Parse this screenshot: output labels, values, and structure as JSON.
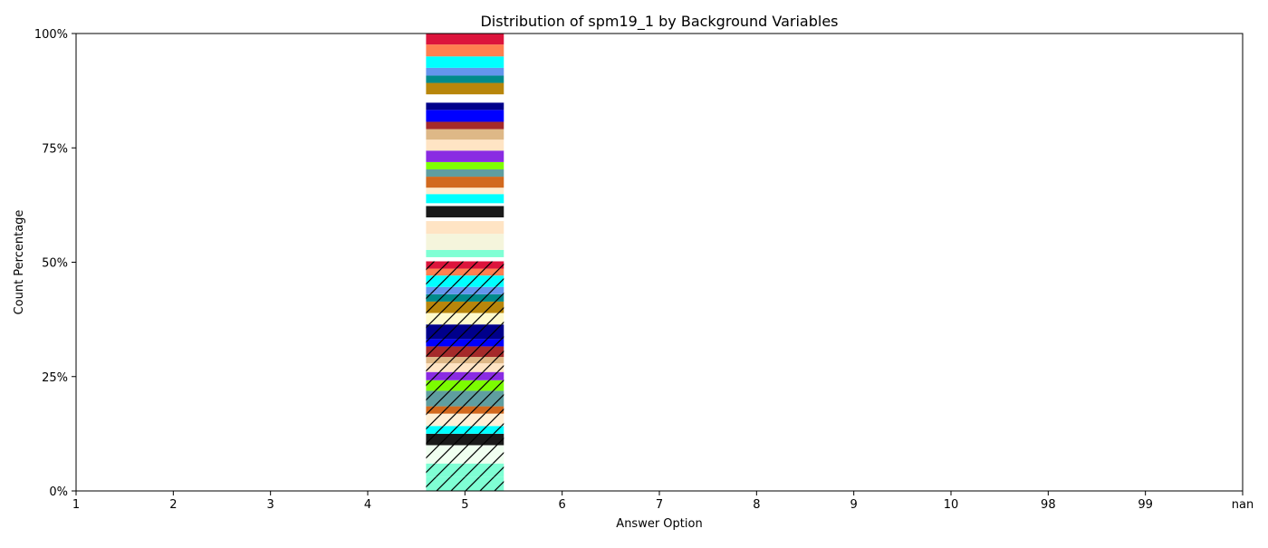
{
  "chart_data": {
    "type": "bar",
    "stacked": true,
    "title": "Distribution of spm19_1 by Background Variables",
    "xlabel": "Answer Option",
    "ylabel": "Count Percentage",
    "categories": [
      "1",
      "2",
      "3",
      "4",
      "5",
      "6",
      "7",
      "8",
      "9",
      "10",
      "98",
      "99",
      "nan"
    ],
    "ylim": [
      0,
      100
    ],
    "y_ticks": [
      "0%",
      "25%",
      "50%",
      "75%",
      "100%"
    ],
    "y_tick_values": [
      0,
      25,
      50,
      75,
      100
    ],
    "grid": false,
    "legend": "none",
    "bar_category": "5",
    "segments": [
      {
        "value": 3.0,
        "color": "#7fffd4",
        "hatch": true
      },
      {
        "value": 3.0,
        "color": "#7fffd4",
        "hatch": true
      },
      {
        "value": 4.0,
        "color": "#f0fff0",
        "hatch": true
      },
      {
        "value": 2.5,
        "color": "#1a1a1a",
        "hatch": true
      },
      {
        "value": 1.7,
        "color": "#00ffff",
        "hatch": true
      },
      {
        "value": 2.7,
        "color": "#ffefd5",
        "hatch": true
      },
      {
        "value": 1.6,
        "color": "#d2691e",
        "hatch": true
      },
      {
        "value": 3.4,
        "color": "#5f9ea0",
        "hatch": true
      },
      {
        "value": 2.3,
        "color": "#7cfc00",
        "hatch": true
      },
      {
        "value": 1.8,
        "color": "#8a2be2",
        "hatch": true
      },
      {
        "value": 1.9,
        "color": "#ffe4c4",
        "hatch": true
      },
      {
        "value": 1.4,
        "color": "#deb887",
        "hatch": true
      },
      {
        "value": 2.3,
        "color": "#a52a2a",
        "hatch": true
      },
      {
        "value": 1.6,
        "color": "#0000ff",
        "hatch": true
      },
      {
        "value": 3.2,
        "color": "#00008b",
        "hatch": true
      },
      {
        "value": 2.5,
        "color": "#fffacd",
        "hatch": true
      },
      {
        "value": 2.5,
        "color": "#b8860b",
        "hatch": true
      },
      {
        "value": 1.6,
        "color": "#008b8b",
        "hatch": true
      },
      {
        "value": 1.6,
        "color": "#6495ed",
        "hatch": true
      },
      {
        "value": 2.5,
        "color": "#00ffff",
        "hatch": true
      },
      {
        "value": 1.5,
        "color": "#ff7f50",
        "hatch": true
      },
      {
        "value": 1.6,
        "color": "#dc143c",
        "hatch": true
      },
      {
        "value": 0.9,
        "color": "#ffffff",
        "hatch": false
      },
      {
        "value": 1.6,
        "color": "#7fffd4",
        "hatch": false
      },
      {
        "value": 3.5,
        "color": "#f5f5dc",
        "hatch": false
      },
      {
        "value": 2.8,
        "color": "#ffe4c4",
        "hatch": false
      },
      {
        "value": 0.8,
        "color": "#ffffff",
        "hatch": false
      },
      {
        "value": 2.5,
        "color": "#1a1a1a",
        "hatch": false
      },
      {
        "value": 0.6,
        "color": "#ffffff",
        "hatch": false
      },
      {
        "value": 2.0,
        "color": "#00ffff",
        "hatch": false
      },
      {
        "value": 1.4,
        "color": "#ffebcd",
        "hatch": false
      },
      {
        "value": 2.4,
        "color": "#d2691e",
        "hatch": false
      },
      {
        "value": 1.6,
        "color": "#5f9ea0",
        "hatch": false
      },
      {
        "value": 1.6,
        "color": "#7fff00",
        "hatch": false
      },
      {
        "value": 2.5,
        "color": "#8a2be2",
        "hatch": false
      },
      {
        "value": 2.4,
        "color": "#ffe4c4",
        "hatch": false
      },
      {
        "value": 2.3,
        "color": "#deb887",
        "hatch": false
      },
      {
        "value": 1.6,
        "color": "#a52a2a",
        "hatch": false
      },
      {
        "value": 2.6,
        "color": "#0000ff",
        "hatch": false
      },
      {
        "value": 1.6,
        "color": "#00008b",
        "hatch": false
      },
      {
        "value": 1.8,
        "color": "#ffffff",
        "hatch": false
      },
      {
        "value": 2.5,
        "color": "#b8860b",
        "hatch": false
      },
      {
        "value": 1.6,
        "color": "#008b8b",
        "hatch": false
      },
      {
        "value": 1.7,
        "color": "#6495ed",
        "hatch": false
      },
      {
        "value": 2.5,
        "color": "#00ffff",
        "hatch": false
      },
      {
        "value": 2.6,
        "color": "#ff7f50",
        "hatch": false
      },
      {
        "value": 2.5,
        "color": "#dc143c",
        "hatch": false
      }
    ]
  }
}
